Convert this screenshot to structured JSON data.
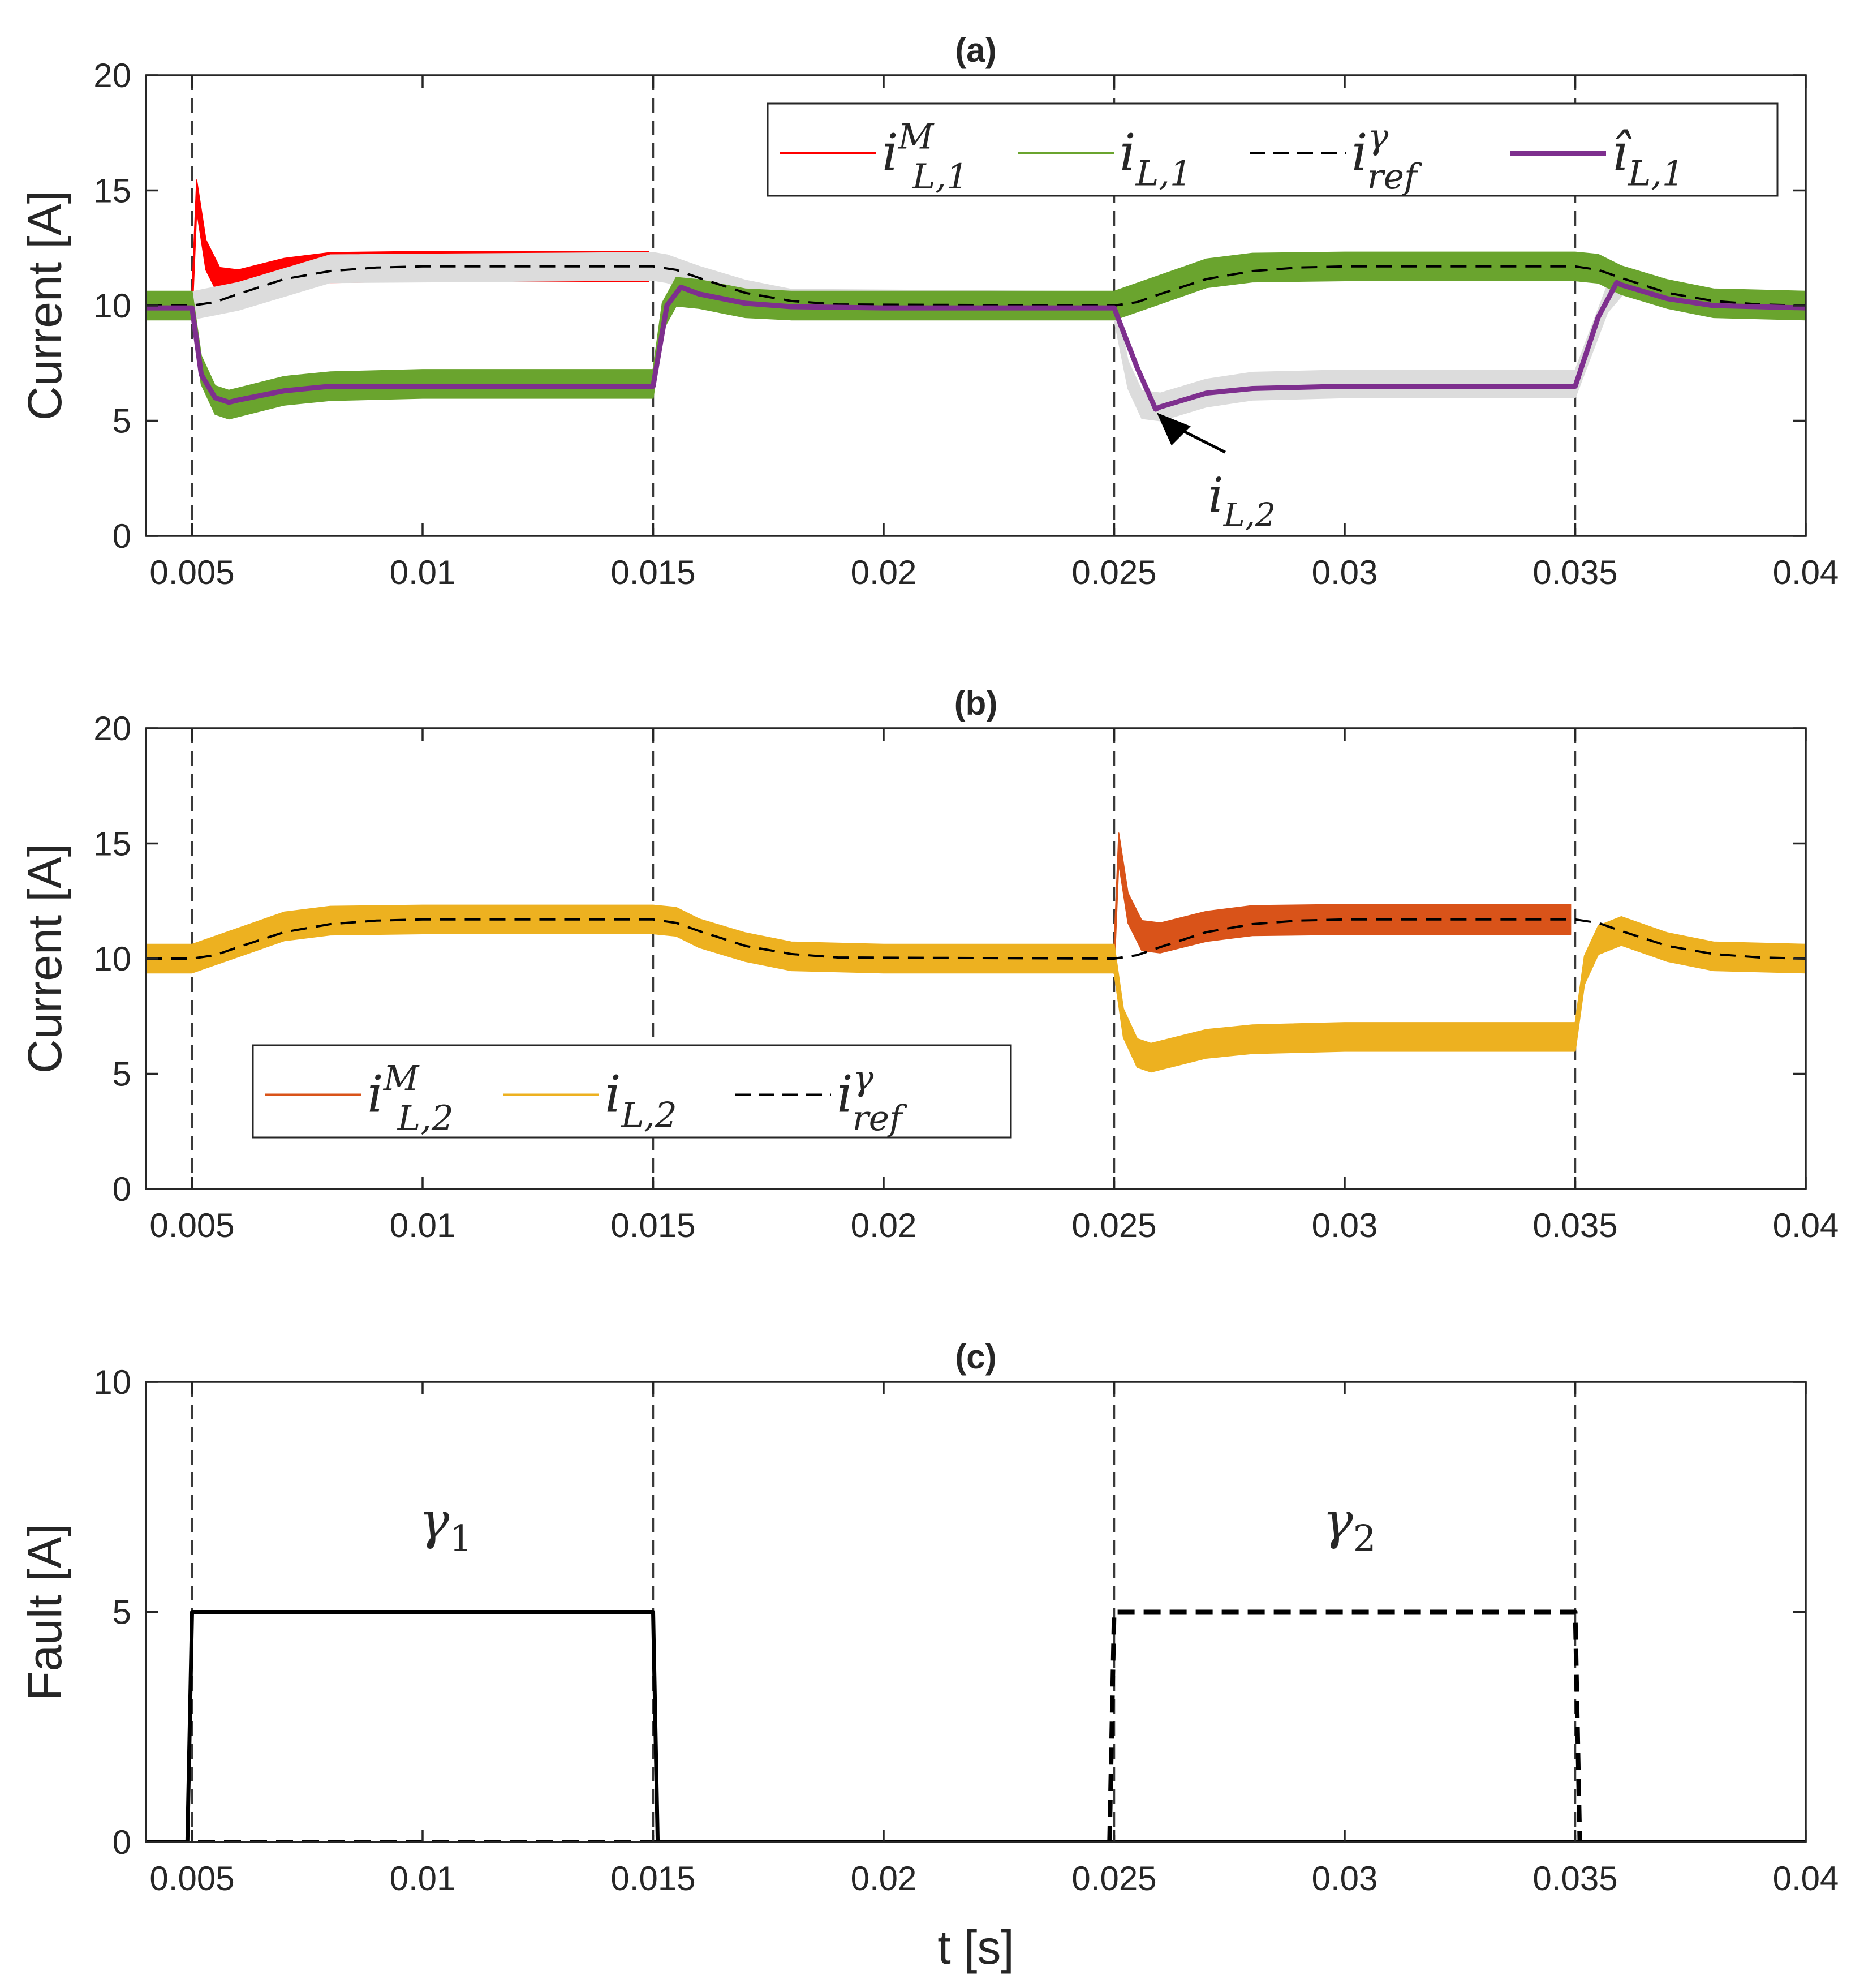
{
  "figure": {
    "xlabel": "t [s]"
  },
  "colors": {
    "red": "#ff0000",
    "green": "#6aa42e",
    "purple": "#7e2f8e",
    "orange": "#d95319",
    "yellow": "#edb120",
    "gray": "#dcdcdc",
    "black": "#000000",
    "axis": "#262626"
  },
  "chart_data": [
    {
      "panel": "a",
      "type": "line",
      "title": "(a)",
      "ylabel": "Current [A]",
      "xlim": [
        0.004,
        0.04
      ],
      "ylim": [
        0,
        20
      ],
      "xticks": [
        0.005,
        0.01,
        0.015,
        0.02,
        0.025,
        0.03,
        0.035,
        0.04
      ],
      "xtick_labels": [
        "0.005",
        "0.01",
        "0.015",
        "0.02",
        "0.025",
        "0.03",
        "0.035",
        "0.04"
      ],
      "yticks": [
        0,
        5,
        10,
        15,
        20
      ],
      "ytick_labels": [
        "0",
        "5",
        "10",
        "15",
        "20"
      ],
      "vlines": [
        0.005,
        0.015,
        0.025,
        0.035
      ],
      "legend": {
        "location": "top-right",
        "entries": [
          {
            "base": "i",
            "sup": "M",
            "sub": "L,1"
          },
          {
            "base": "i",
            "sup": "",
            "sub": "L,1"
          },
          {
            "base": "i",
            "sup": "γ",
            "sub": "ref"
          },
          {
            "base": "î",
            "sup": "",
            "sub": "L,1"
          }
        ]
      },
      "annotation": {
        "base": "i",
        "sub": "L,2",
        "arrow_to": [
          0.0259,
          5.4
        ],
        "text_at": [
          0.0279,
          1.3
        ]
      },
      "series": [
        {
          "name": "i^M_{L,1}",
          "style": "band",
          "color": "#ff0000",
          "x": [
            0.005,
            0.0051,
            0.0053,
            0.0056,
            0.006,
            0.007,
            0.008,
            0.01,
            0.012,
            0.014,
            0.0149
          ],
          "y": [
            10.0,
            14.8,
            12.2,
            11.0,
            10.9,
            11.4,
            11.65,
            11.7,
            11.7,
            11.7,
            11.7
          ],
          "halfwidth": 0.65
        },
        {
          "name": "i_{L,1} (ghost)",
          "style": "band",
          "color": "#dcdcdc",
          "x": [
            0.004,
            0.0048,
            0.005,
            0.006,
            0.008,
            0.0149,
            0.015,
            0.0153,
            0.016,
            0.017,
            0.018,
            0.025
          ],
          "y": [
            10,
            10,
            10,
            10.4,
            11.6,
            11.7,
            11.7,
            11.6,
            11.1,
            10.5,
            10.1,
            10
          ],
          "halfwidth": 0.6
        },
        {
          "name": "i_{L,2} (ghost)",
          "style": "band",
          "color": "#dcdcdc",
          "x": [
            0.025,
            0.0253,
            0.0256,
            0.026,
            0.027,
            0.028,
            0.03,
            0.0348,
            0.035,
            0.0357,
            0.036
          ],
          "y": [
            10,
            7.0,
            5.7,
            5.6,
            6.2,
            6.5,
            6.6,
            6.6,
            6.6,
            10.3,
            11.0
          ],
          "halfwidth": 0.6
        },
        {
          "name": "i_{L,1}",
          "style": "band",
          "color": "#6aa42e",
          "x": [
            0.004,
            0.0049,
            0.005,
            0.0052,
            0.0055,
            0.0058,
            0.006,
            0.007,
            0.008,
            0.01,
            0.012,
            0.0149,
            0.015,
            0.0152,
            0.0155,
            0.016,
            0.017,
            0.018,
            0.02,
            0.025,
            0.026,
            0.027,
            0.028,
            0.03,
            0.033,
            0.035,
            0.0355,
            0.036,
            0.037,
            0.038,
            0.04
          ],
          "y": [
            10,
            10,
            10,
            7.2,
            5.9,
            5.7,
            5.8,
            6.3,
            6.5,
            6.6,
            6.6,
            6.6,
            6.6,
            9.5,
            10.6,
            10.5,
            10.1,
            10,
            10,
            10,
            10.7,
            11.4,
            11.65,
            11.7,
            11.7,
            11.7,
            11.6,
            11.1,
            10.5,
            10.1,
            10
          ],
          "halfwidth": 0.62
        },
        {
          "name": "i^γ_{ref}",
          "style": "dashed",
          "color": "#000000",
          "x": [
            0.004,
            0.005,
            0.0055,
            0.006,
            0.007,
            0.008,
            0.009,
            0.01,
            0.015,
            0.0155,
            0.016,
            0.017,
            0.018,
            0.019,
            0.025,
            0.0255,
            0.026,
            0.027,
            0.028,
            0.029,
            0.03,
            0.035,
            0.0355,
            0.036,
            0.037,
            0.038,
            0.039,
            0.04
          ],
          "y": [
            10,
            10,
            10.15,
            10.5,
            11.15,
            11.5,
            11.65,
            11.7,
            11.7,
            11.55,
            11.2,
            10.55,
            10.2,
            10.05,
            10,
            10.15,
            10.5,
            11.15,
            11.5,
            11.65,
            11.7,
            11.7,
            11.55,
            11.2,
            10.55,
            10.2,
            10.05,
            10
          ]
        },
        {
          "name": "î_{L,1}",
          "style": "line",
          "color": "#7e2f8e",
          "x": [
            0.004,
            0.005,
            0.0052,
            0.0055,
            0.0058,
            0.006,
            0.007,
            0.008,
            0.01,
            0.0149,
            0.015,
            0.0153,
            0.0156,
            0.016,
            0.017,
            0.018,
            0.02,
            0.025,
            0.0255,
            0.0259,
            0.026,
            0.027,
            0.028,
            0.03,
            0.035,
            0.0355,
            0.0359,
            0.036,
            0.037,
            0.038,
            0.04
          ],
          "y": [
            9.9,
            9.9,
            7.0,
            6.0,
            5.8,
            5.9,
            6.3,
            6.5,
            6.5,
            6.5,
            6.5,
            10.0,
            10.8,
            10.5,
            10.1,
            9.95,
            9.9,
            9.9,
            7.3,
            5.5,
            5.6,
            6.2,
            6.4,
            6.5,
            6.5,
            9.5,
            11.0,
            10.9,
            10.3,
            10.0,
            9.9
          ]
        }
      ]
    },
    {
      "panel": "b",
      "type": "line",
      "title": "(b)",
      "ylabel": "Current [A]",
      "xlim": [
        0.004,
        0.04
      ],
      "ylim": [
        0,
        20
      ],
      "xticks": [
        0.005,
        0.01,
        0.015,
        0.02,
        0.025,
        0.03,
        0.035,
        0.04
      ],
      "xtick_labels": [
        "0.005",
        "0.01",
        "0.015",
        "0.02",
        "0.025",
        "0.03",
        "0.035",
        "0.04"
      ],
      "yticks": [
        0,
        5,
        10,
        15,
        20
      ],
      "ytick_labels": [
        "0",
        "5",
        "10",
        "15",
        "20"
      ],
      "vlines": [
        0.005,
        0.015,
        0.025,
        0.035
      ],
      "legend": {
        "location": "lower-left",
        "entries": [
          {
            "base": "i",
            "sup": "M",
            "sub": "L,2"
          },
          {
            "base": "i",
            "sup": "",
            "sub": "L,2"
          },
          {
            "base": "i",
            "sup": "γ",
            "sub": "ref"
          }
        ]
      },
      "series": [
        {
          "name": "i^M_{L,2}",
          "style": "band",
          "color": "#d95319",
          "x": [
            0.025,
            0.0251,
            0.0253,
            0.0256,
            0.026,
            0.027,
            0.028,
            0.03,
            0.032,
            0.0349
          ],
          "y": [
            10.0,
            14.8,
            12.2,
            11.0,
            10.9,
            11.4,
            11.65,
            11.7,
            11.7,
            11.7
          ],
          "halfwidth": 0.65
        },
        {
          "name": "i_{L,2}",
          "style": "band",
          "color": "#edb120",
          "x": [
            0.004,
            0.005,
            0.006,
            0.007,
            0.008,
            0.01,
            0.015,
            0.0155,
            0.016,
            0.017,
            0.018,
            0.02,
            0.0249,
            0.025,
            0.0252,
            0.0255,
            0.0258,
            0.026,
            0.027,
            0.028,
            0.03,
            0.0349,
            0.035,
            0.0352,
            0.0355,
            0.036,
            0.037,
            0.038,
            0.04
          ],
          "y": [
            10,
            10,
            10.7,
            11.4,
            11.65,
            11.7,
            11.7,
            11.6,
            11.1,
            10.5,
            10.1,
            10,
            10,
            10,
            7.2,
            5.9,
            5.7,
            5.8,
            6.3,
            6.5,
            6.6,
            6.6,
            6.6,
            9.5,
            10.8,
            11.2,
            10.5,
            10.1,
            10
          ],
          "halfwidth": 0.62
        },
        {
          "name": "i^γ_{ref}",
          "style": "dashed",
          "color": "#000000",
          "x": [
            0.004,
            0.005,
            0.0055,
            0.006,
            0.007,
            0.008,
            0.009,
            0.01,
            0.015,
            0.0155,
            0.016,
            0.017,
            0.018,
            0.019,
            0.025,
            0.0255,
            0.026,
            0.027,
            0.028,
            0.029,
            0.03,
            0.035,
            0.0355,
            0.036,
            0.037,
            0.038,
            0.039,
            0.04
          ],
          "y": [
            10,
            10,
            10.15,
            10.5,
            11.15,
            11.5,
            11.65,
            11.7,
            11.7,
            11.55,
            11.2,
            10.55,
            10.2,
            10.05,
            10,
            10.15,
            10.5,
            11.15,
            11.5,
            11.65,
            11.7,
            11.7,
            11.55,
            11.2,
            10.55,
            10.2,
            10.05,
            10
          ]
        }
      ]
    },
    {
      "panel": "c",
      "type": "line",
      "title": "(c)",
      "ylabel": "Fault [A]",
      "xlabel": "t [s]",
      "xlim": [
        0.004,
        0.04
      ],
      "ylim": [
        0,
        10
      ],
      "xticks": [
        0.005,
        0.01,
        0.015,
        0.02,
        0.025,
        0.03,
        0.035,
        0.04
      ],
      "xtick_labels": [
        "0.005",
        "0.01",
        "0.015",
        "0.02",
        "0.025",
        "0.03",
        "0.035",
        "0.04"
      ],
      "yticks": [
        0,
        5,
        10
      ],
      "ytick_labels": [
        "0",
        "5",
        "10"
      ],
      "vlines": [
        0.005,
        0.015,
        0.025,
        0.035
      ],
      "labels": [
        {
          "base": "γ",
          "sub": "1",
          "at": [
            0.0105,
            6.6
          ]
        },
        {
          "base": "γ",
          "sub": "2",
          "at": [
            0.0301,
            6.6
          ]
        }
      ],
      "series": [
        {
          "name": "γ1",
          "style": "solid-thick",
          "color": "#000000",
          "x": [
            0.004,
            0.0049,
            0.005,
            0.015,
            0.0151,
            0.04
          ],
          "y": [
            0,
            0,
            5,
            5,
            0,
            0
          ]
        },
        {
          "name": "γ2",
          "style": "dashed-thick",
          "color": "#000000",
          "x": [
            0.004,
            0.0249,
            0.025,
            0.035,
            0.0351,
            0.04
          ],
          "y": [
            0,
            0,
            5,
            5,
            0,
            0
          ]
        }
      ]
    }
  ]
}
